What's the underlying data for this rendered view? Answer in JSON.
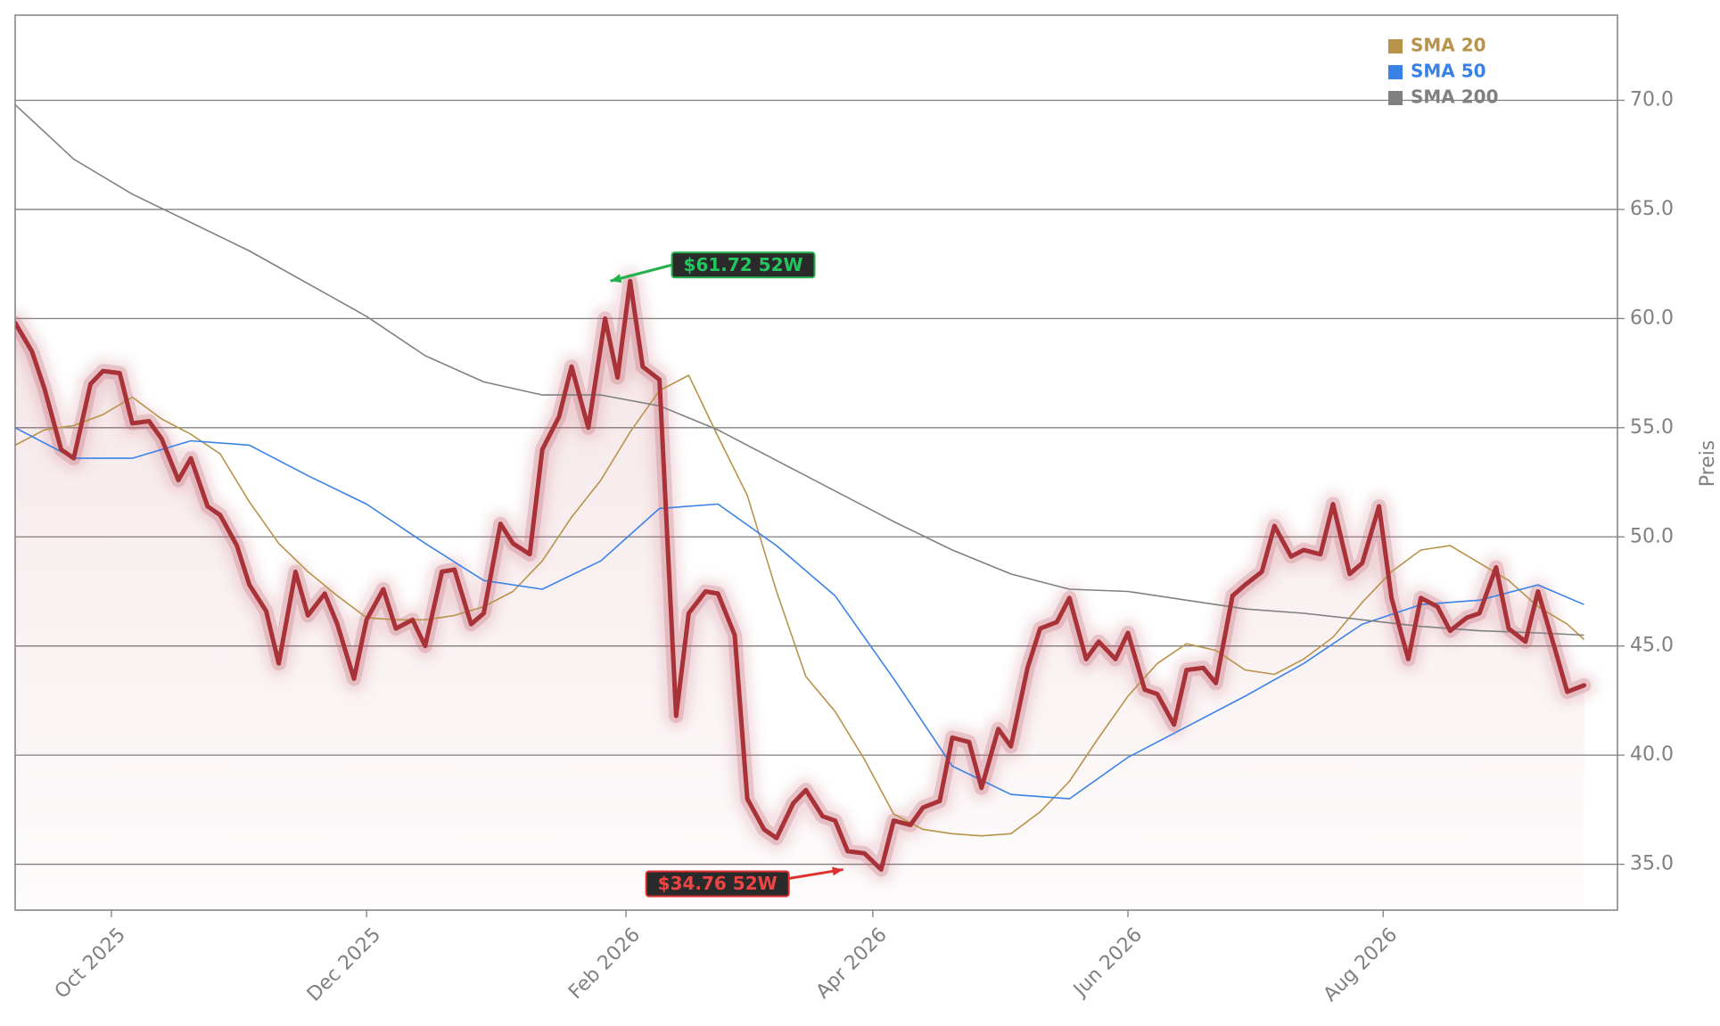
{
  "chart_data": {
    "type": "line",
    "title": "",
    "xlabel": "",
    "ylabel": "Preis",
    "ylim": [
      32.9,
      73.9
    ],
    "xlim": [
      "2025-09-08",
      "2026-09-26"
    ],
    "y_ticks": [
      35.0,
      40.0,
      45.0,
      50.0,
      55.0,
      60.0,
      65.0,
      70.0
    ],
    "y_tick_labels": [
      "35.0",
      "40.0",
      "45.0",
      "50.0",
      "55.0",
      "60.0",
      "65.0",
      "70.0"
    ],
    "x_ticks": [
      "2025-10-01",
      "2025-12-01",
      "2026-02-01",
      "2026-04-01",
      "2026-06-01",
      "2026-08-01"
    ],
    "x_tick_labels": [
      "Oct 2025",
      "Dec 2025",
      "Feb 2026",
      "Apr 2026",
      "Jun 2026",
      "Aug 2026"
    ],
    "grid": "horizontal",
    "legend_position": "top-right",
    "colors": {
      "price": "#a83238",
      "glow": "#c0606a",
      "area": "#b44a55",
      "sma20": "#b8934a",
      "sma50": "#3b82e8",
      "sma200": "#808080",
      "high_bg": "#2a2a2a",
      "high_border": "#22b14c",
      "high_text": "#22c55e",
      "low_bg": "#2a2a2a",
      "low_border": "#e03030",
      "low_text": "#ef4444",
      "grid": "#808080",
      "frame": "#808080"
    },
    "legend": [
      {
        "label": "SMA 20",
        "color": "#b8934a"
      },
      {
        "label": "SMA 50",
        "color": "#3b82e8"
      },
      {
        "label": "SMA 200",
        "color": "#808080"
      }
    ],
    "annotations": [
      {
        "text": "$61.72 52W",
        "kind": "high",
        "x": "2026-01-27",
        "y": 61.72
      },
      {
        "text": "$34.76 52W",
        "kind": "low",
        "x": "2026-03-26",
        "y": 34.76
      }
    ],
    "series": [
      {
        "name": "Price",
        "x": [
          "2025-09-08",
          "2025-09-12",
          "2025-09-15",
          "2025-09-19",
          "2025-09-22",
          "2025-09-26",
          "2025-09-29",
          "2025-10-03",
          "2025-10-06",
          "2025-10-10",
          "2025-10-13",
          "2025-10-17",
          "2025-10-20",
          "2025-10-24",
          "2025-10-27",
          "2025-10-31",
          "2025-11-03",
          "2025-11-07",
          "2025-11-10",
          "2025-11-14",
          "2025-11-17",
          "2025-11-21",
          "2025-11-24",
          "2025-11-28",
          "2025-12-01",
          "2025-12-05",
          "2025-12-08",
          "2025-12-12",
          "2025-12-15",
          "2025-12-19",
          "2025-12-22",
          "2025-12-26",
          "2025-12-29",
          "2026-01-02",
          "2026-01-05",
          "2026-01-09",
          "2026-01-12",
          "2026-01-16",
          "2026-01-19",
          "2026-01-23",
          "2026-01-27",
          "2026-01-30",
          "2026-02-02",
          "2026-02-05",
          "2026-02-09",
          "2026-02-13",
          "2026-02-16",
          "2026-02-20",
          "2026-02-23",
          "2026-02-27",
          "2026-03-02",
          "2026-03-06",
          "2026-03-09",
          "2026-03-13",
          "2026-03-16",
          "2026-03-20",
          "2026-03-23",
          "2026-03-26",
          "2026-03-30",
          "2026-04-03",
          "2026-04-06",
          "2026-04-10",
          "2026-04-13",
          "2026-04-17",
          "2026-04-20",
          "2026-04-24",
          "2026-04-27",
          "2026-05-01",
          "2026-05-04",
          "2026-05-08",
          "2026-05-11",
          "2026-05-15",
          "2026-05-18",
          "2026-05-22",
          "2026-05-25",
          "2026-05-29",
          "2026-06-01",
          "2026-06-05",
          "2026-06-08",
          "2026-06-12",
          "2026-06-15",
          "2026-06-19",
          "2026-06-22",
          "2026-06-26",
          "2026-06-29",
          "2026-07-03",
          "2026-07-06",
          "2026-07-10",
          "2026-07-13",
          "2026-07-17",
          "2026-07-20",
          "2026-07-24",
          "2026-07-27",
          "2026-07-31",
          "2026-08-03",
          "2026-08-07",
          "2026-08-10",
          "2026-08-14",
          "2026-08-17",
          "2026-08-21",
          "2026-08-24",
          "2026-08-28",
          "2026-08-31",
          "2026-09-04",
          "2026-09-07",
          "2026-09-11",
          "2026-09-14",
          "2026-09-18"
        ],
        "values": [
          59.8,
          58.5,
          56.8,
          54.0,
          53.6,
          57.0,
          57.6,
          57.5,
          55.2,
          55.3,
          54.5,
          52.6,
          53.6,
          51.4,
          51.0,
          49.6,
          47.8,
          46.6,
          44.2,
          48.4,
          46.4,
          47.4,
          46.0,
          43.5,
          46.2,
          47.6,
          45.8,
          46.2,
          45.0,
          48.4,
          48.5,
          46.0,
          46.5,
          50.6,
          49.7,
          49.2,
          54.0,
          55.5,
          57.8,
          55.0,
          60.0,
          57.3,
          61.72,
          57.8,
          57.2,
          41.8,
          46.5,
          47.5,
          47.4,
          45.5,
          38.0,
          36.6,
          36.2,
          37.8,
          38.4,
          37.2,
          37.0,
          35.6,
          35.5,
          34.76,
          37.0,
          36.8,
          37.6,
          37.9,
          40.8,
          40.6,
          38.5,
          41.2,
          40.4,
          44.0,
          45.8,
          46.1,
          47.2,
          44.4,
          45.2,
          44.4,
          45.6,
          43.0,
          42.8,
          41.4,
          43.9,
          44.0,
          43.3,
          47.3,
          47.8,
          48.4,
          50.5,
          49.1,
          49.4,
          49.2,
          51.5,
          48.3,
          48.8,
          51.4,
          47.2,
          44.4,
          47.2,
          46.8,
          45.7,
          46.3,
          46.5,
          48.6,
          45.8,
          45.2,
          47.5,
          44.9,
          42.9,
          43.2
        ]
      },
      {
        "name": "SMA 20",
        "x": [
          "2025-09-08",
          "2025-09-15",
          "2025-09-22",
          "2025-09-29",
          "2025-10-06",
          "2025-10-13",
          "2025-10-20",
          "2025-10-27",
          "2025-11-03",
          "2025-11-10",
          "2025-11-17",
          "2025-11-24",
          "2025-12-01",
          "2025-12-08",
          "2025-12-15",
          "2025-12-22",
          "2025-12-29",
          "2026-01-05",
          "2026-01-12",
          "2026-01-19",
          "2026-01-26",
          "2026-02-02",
          "2026-02-09",
          "2026-02-16",
          "2026-02-23",
          "2026-03-02",
          "2026-03-09",
          "2026-03-16",
          "2026-03-23",
          "2026-03-30",
          "2026-04-06",
          "2026-04-13",
          "2026-04-20",
          "2026-04-27",
          "2026-05-04",
          "2026-05-11",
          "2026-05-18",
          "2026-05-25",
          "2026-06-01",
          "2026-06-08",
          "2026-06-15",
          "2026-06-22",
          "2026-06-29",
          "2026-07-06",
          "2026-07-13",
          "2026-07-20",
          "2026-07-27",
          "2026-08-03",
          "2026-08-10",
          "2026-08-17",
          "2026-08-24",
          "2026-08-31",
          "2026-09-07",
          "2026-09-14",
          "2026-09-18"
        ],
        "values": [
          54.2,
          54.9,
          55.1,
          55.6,
          56.4,
          55.4,
          54.7,
          53.8,
          51.6,
          49.7,
          48.4,
          47.3,
          46.3,
          46.2,
          46.2,
          46.4,
          46.8,
          47.5,
          48.9,
          50.9,
          52.6,
          54.8,
          56.7,
          57.4,
          54.6,
          51.9,
          47.5,
          43.6,
          42.0,
          39.8,
          37.3,
          36.6,
          36.4,
          36.3,
          36.4,
          37.4,
          38.8,
          40.8,
          42.7,
          44.2,
          45.1,
          44.8,
          43.9,
          43.7,
          44.4,
          45.4,
          47.0,
          48.4,
          49.4,
          49.6,
          48.8,
          48.0,
          46.8,
          46.0,
          45.3
        ]
      },
      {
        "name": "SMA 50",
        "x": [
          "2025-09-08",
          "2025-09-22",
          "2025-10-06",
          "2025-10-20",
          "2025-11-03",
          "2025-11-17",
          "2025-12-01",
          "2025-12-15",
          "2025-12-29",
          "2026-01-12",
          "2026-01-26",
          "2026-02-09",
          "2026-02-23",
          "2026-03-09",
          "2026-03-23",
          "2026-04-06",
          "2026-04-20",
          "2026-05-04",
          "2026-05-18",
          "2026-06-01",
          "2026-06-15",
          "2026-06-29",
          "2026-07-13",
          "2026-07-27",
          "2026-08-10",
          "2026-08-24",
          "2026-09-07",
          "2026-09-18"
        ],
        "values": [
          55.0,
          53.6,
          53.6,
          54.4,
          54.2,
          52.8,
          51.5,
          49.7,
          48.0,
          47.6,
          48.9,
          51.3,
          51.5,
          49.6,
          47.3,
          43.5,
          39.5,
          38.2,
          38.0,
          39.9,
          41.3,
          42.7,
          44.2,
          46.0,
          46.9,
          47.1,
          47.8,
          46.9
        ]
      },
      {
        "name": "SMA 200",
        "x": [
          "2025-09-08",
          "2025-09-22",
          "2025-10-06",
          "2025-10-20",
          "2025-11-03",
          "2025-11-17",
          "2025-12-01",
          "2025-12-15",
          "2025-12-29",
          "2026-01-12",
          "2026-01-26",
          "2026-02-09",
          "2026-02-23",
          "2026-03-09",
          "2026-03-23",
          "2026-04-06",
          "2026-04-20",
          "2026-05-04",
          "2026-05-18",
          "2026-06-01",
          "2026-06-15",
          "2026-06-29",
          "2026-07-13",
          "2026-07-27",
          "2026-08-10",
          "2026-08-24",
          "2026-09-07",
          "2026-09-18"
        ],
        "values": [
          69.8,
          67.3,
          65.7,
          64.4,
          63.1,
          61.6,
          60.1,
          58.3,
          57.1,
          56.5,
          56.5,
          56.0,
          54.9,
          53.5,
          52.1,
          50.7,
          49.4,
          48.3,
          47.6,
          47.5,
          47.1,
          46.7,
          46.5,
          46.2,
          45.9,
          45.7,
          45.6,
          45.5
        ]
      }
    ]
  }
}
